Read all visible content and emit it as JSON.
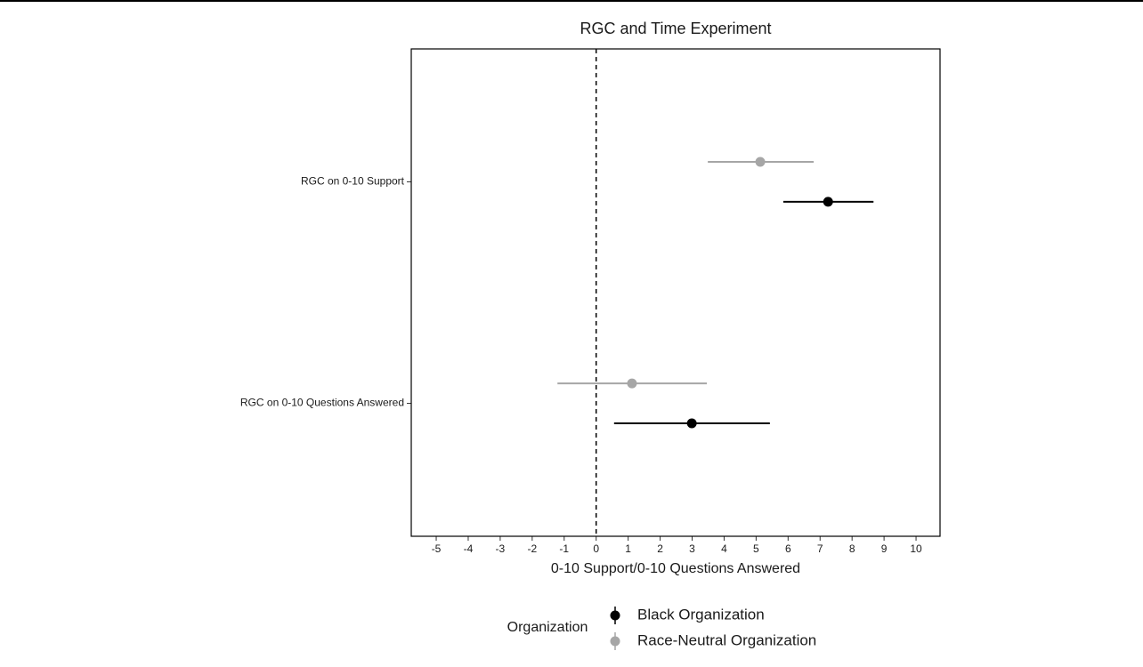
{
  "chart_data": {
    "type": "pointrange",
    "title": "RGC and Time Experiment",
    "xlabel": "0-10 Support/0-10 Questions Answered",
    "categories": [
      "RGC on 0-10 Support",
      "RGC on 0-10 Questions Answered"
    ],
    "series": [
      {
        "name": "Race-Neutral Organization",
        "color": "#a6a6a6",
        "values": [
          5.13,
          1.12
        ],
        "lower": [
          3.49,
          -1.21
        ],
        "upper": [
          6.8,
          3.46
        ]
      },
      {
        "name": "Black Organization",
        "color": "#000000",
        "values": [
          7.25,
          2.99
        ],
        "lower": [
          5.85,
          0.56
        ],
        "upper": [
          8.67,
          5.43
        ]
      }
    ],
    "xlim": [
      -5.78,
      10.75
    ],
    "xticks": [
      -5,
      -4,
      -3,
      -2,
      -1,
      0,
      1,
      2,
      3,
      4,
      5,
      6,
      7,
      8,
      9,
      10
    ],
    "vline": 0,
    "legend_title": "Organization",
    "legend": "bottom"
  }
}
